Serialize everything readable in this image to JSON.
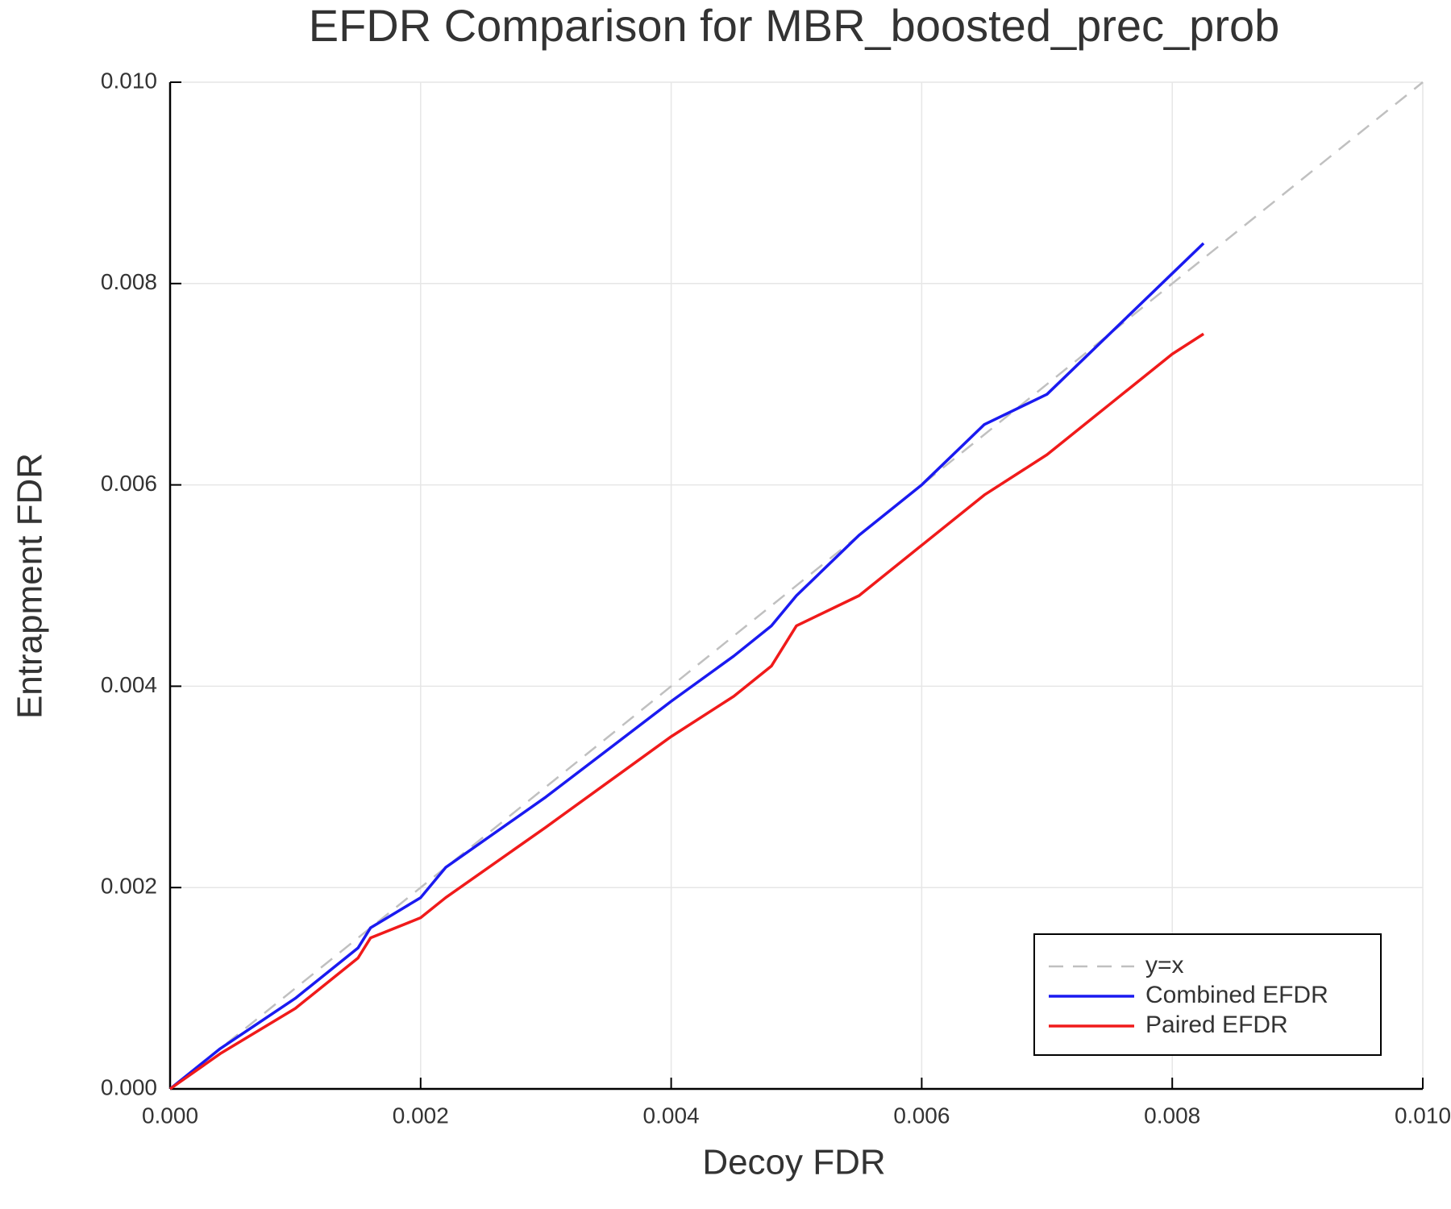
{
  "chart_data": {
    "type": "line",
    "title": "EFDR Comparison for MBR_boosted_prec_prob",
    "xlabel": "Decoy FDR",
    "ylabel": "Entrapment FDR",
    "xlim": [
      0,
      0.01
    ],
    "ylim": [
      0,
      0.01
    ],
    "xticks": [
      {
        "value": 0,
        "label": "0.000"
      },
      {
        "value": 0.002,
        "label": "0.002"
      },
      {
        "value": 0.004,
        "label": "0.004"
      },
      {
        "value": 0.006,
        "label": "0.006"
      },
      {
        "value": 0.008,
        "label": "0.008"
      },
      {
        "value": 0.01,
        "label": "0.010"
      }
    ],
    "yticks": [
      {
        "value": 0,
        "label": "0.000"
      },
      {
        "value": 0.002,
        "label": "0.002"
      },
      {
        "value": 0.004,
        "label": "0.004"
      },
      {
        "value": 0.006,
        "label": "0.006"
      },
      {
        "value": 0.008,
        "label": "0.008"
      },
      {
        "value": 0.01,
        "label": "0.010"
      }
    ],
    "grid": true,
    "legend": "bottom-right",
    "series": [
      {
        "name": "y=x",
        "color": "#c0c0c0",
        "dashed": true,
        "x": [
          0,
          0.01
        ],
        "values": [
          0,
          0.01
        ]
      },
      {
        "name": "Combined EFDR",
        "color": "#1a1af0",
        "dashed": false,
        "x": [
          0,
          0.0004,
          0.001,
          0.0015,
          0.0016,
          0.002,
          0.0022,
          0.003,
          0.004,
          0.0045,
          0.0048,
          0.005,
          0.0055,
          0.006,
          0.0065,
          0.007,
          0.0075,
          0.008,
          0.00825
        ],
        "values": [
          0,
          0.0004,
          0.0009,
          0.0014,
          0.0016,
          0.0019,
          0.0022,
          0.0029,
          0.00385,
          0.0043,
          0.0046,
          0.0049,
          0.0055,
          0.006,
          0.0066,
          0.0069,
          0.0075,
          0.0081,
          0.0084
        ]
      },
      {
        "name": "Paired EFDR",
        "color": "#f01a1a",
        "dashed": false,
        "x": [
          0,
          0.0004,
          0.001,
          0.0015,
          0.0016,
          0.002,
          0.0022,
          0.003,
          0.004,
          0.0045,
          0.0048,
          0.005,
          0.0055,
          0.006,
          0.0065,
          0.007,
          0.0075,
          0.008,
          0.00825
        ],
        "values": [
          0,
          0.00035,
          0.0008,
          0.0013,
          0.0015,
          0.0017,
          0.0019,
          0.0026,
          0.0035,
          0.0039,
          0.0042,
          0.0046,
          0.0049,
          0.0054,
          0.0059,
          0.0063,
          0.0068,
          0.0073,
          0.0075
        ]
      }
    ]
  }
}
